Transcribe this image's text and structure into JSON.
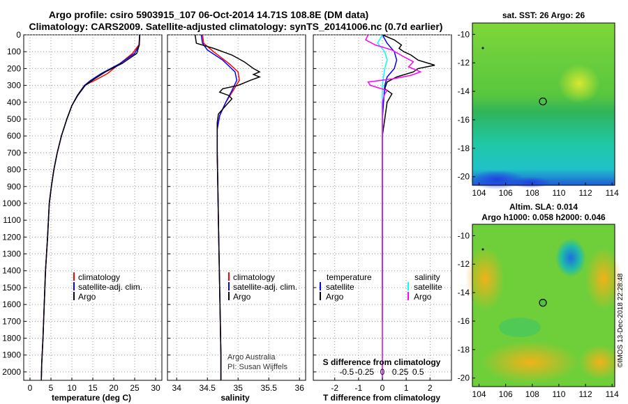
{
  "title": {
    "line1": "Argo profile: csiro 5903915_107 06-Oct-2014 14.71S 108.8E (DM data)",
    "line2": "Climatology: CARS2009. Satellite-adjusted climatology: synTS_20141006.nc (0.7d earlier)"
  },
  "colors": {
    "climatology": "#ff0000",
    "satellite": "#0000ff",
    "argo": "#000000",
    "sat_s": "#00ffff",
    "argo_s": "#ff00ff"
  },
  "chart_data": [
    {
      "type": "line",
      "id": "temperature",
      "xlabel": "temperature (deg C)",
      "xlim": [
        -1.5,
        31.5
      ],
      "ylim": [
        2050,
        0
      ],
      "xticks": [
        0,
        5,
        10,
        15,
        20,
        25,
        30
      ],
      "yticks": [
        0,
        100,
        200,
        300,
        400,
        500,
        600,
        700,
        800,
        900,
        1000,
        1100,
        1200,
        1300,
        1400,
        1500,
        1600,
        1700,
        1800,
        1900,
        2000
      ],
      "legend": [
        "climatology",
        "satellite-adj. clim.",
        "Argo"
      ],
      "series": [
        {
          "name": "climatology",
          "color": "#ff0000",
          "points": [
            [
              26.2,
              0
            ],
            [
              26.0,
              60
            ],
            [
              24.5,
              110
            ],
            [
              21,
              180
            ],
            [
              18.5,
              230
            ],
            [
              15.5,
              270
            ],
            [
              13,
              300
            ],
            [
              11.3,
              360
            ],
            [
              10,
              420
            ],
            [
              8.8,
              500
            ],
            [
              7.5,
              600
            ],
            [
              6.5,
              700
            ],
            [
              5.7,
              800
            ],
            [
              5.1,
              900
            ],
            [
              4.6,
              1000
            ],
            [
              4.2,
              1200
            ],
            [
              3.7,
              1400
            ],
            [
              3.4,
              1600
            ],
            [
              3.1,
              1800
            ],
            [
              2.8,
              1950
            ],
            [
              2.7,
              2050
            ]
          ]
        },
        {
          "name": "satellite-adj. clim.",
          "color": "#0000ff",
          "points": [
            [
              26.2,
              0
            ],
            [
              26.1,
              60
            ],
            [
              25,
              110
            ],
            [
              21.5,
              170
            ],
            [
              17,
              230
            ],
            [
              14.5,
              270
            ],
            [
              13,
              300
            ],
            [
              11.3,
              360
            ],
            [
              10,
              420
            ],
            [
              8.8,
              500
            ],
            [
              7.5,
              600
            ],
            [
              6.5,
              700
            ],
            [
              5.7,
              800
            ],
            [
              5.1,
              900
            ],
            [
              4.6,
              1000
            ],
            [
              4.2,
              1200
            ],
            [
              3.7,
              1400
            ],
            [
              3.4,
              1600
            ],
            [
              3.1,
              1800
            ],
            [
              2.8,
              1950
            ],
            [
              2.7,
              2050
            ]
          ]
        },
        {
          "name": "Argo",
          "color": "#000000",
          "points": [
            [
              26.2,
              0
            ],
            [
              26.1,
              60
            ],
            [
              25.5,
              110
            ],
            [
              22,
              170
            ],
            [
              18,
              220
            ],
            [
              15.5,
              260
            ],
            [
              13.2,
              300
            ],
            [
              11.4,
              360
            ],
            [
              10,
              420
            ],
            [
              8.8,
              500
            ],
            [
              7.5,
              600
            ],
            [
              6.5,
              700
            ],
            [
              5.7,
              800
            ],
            [
              5.1,
              900
            ],
            [
              4.6,
              1000
            ],
            [
              4.2,
              1200
            ],
            [
              3.7,
              1400
            ],
            [
              3.4,
              1600
            ],
            [
              3.1,
              1800
            ],
            [
              2.8,
              1950
            ],
            [
              2.7,
              2050
            ]
          ]
        }
      ]
    },
    {
      "type": "line",
      "id": "salinity",
      "xlabel": "salinity",
      "xlim": [
        33.85,
        36.1
      ],
      "ylim": [
        2050,
        0
      ],
      "xticks": [
        34,
        34.5,
        35,
        35.5,
        36
      ],
      "xticklabels": [
        "34",
        "34.5",
        "35",
        "35.5",
        "36"
      ],
      "legend": [
        "climatology",
        "satellite-adj. clim.",
        "Argo"
      ],
      "credit": [
        "Argo Australia",
        "PI: Susan Wijffels"
      ],
      "series": [
        {
          "name": "climatology",
          "color": "#ff0000",
          "points": [
            [
              34.42,
              0
            ],
            [
              34.44,
              50
            ],
            [
              34.6,
              100
            ],
            [
              34.85,
              170
            ],
            [
              35.0,
              220
            ],
            [
              35.02,
              270
            ],
            [
              34.92,
              330
            ],
            [
              34.8,
              400
            ],
            [
              34.7,
              480
            ],
            [
              34.66,
              560
            ],
            [
              34.66,
              700
            ],
            [
              34.67,
              900
            ],
            [
              34.68,
              1100
            ],
            [
              34.69,
              1300
            ],
            [
              34.7,
              1500
            ],
            [
              34.71,
              1700
            ],
            [
              34.72,
              1900
            ],
            [
              34.72,
              2050
            ]
          ]
        },
        {
          "name": "satellite-adj. clim.",
          "color": "#0000ff",
          "points": [
            [
              34.4,
              0
            ],
            [
              34.42,
              50
            ],
            [
              34.5,
              90
            ],
            [
              34.75,
              150
            ],
            [
              34.95,
              220
            ],
            [
              34.98,
              270
            ],
            [
              34.9,
              330
            ],
            [
              34.8,
              400
            ],
            [
              34.7,
              480
            ],
            [
              34.66,
              560
            ],
            [
              34.66,
              700
            ],
            [
              34.67,
              900
            ],
            [
              34.68,
              1100
            ],
            [
              34.69,
              1300
            ],
            [
              34.7,
              1500
            ],
            [
              34.71,
              1700
            ],
            [
              34.72,
              1900
            ],
            [
              34.72,
              2050
            ]
          ]
        },
        {
          "name": "Argo",
          "color": "#000000",
          "points": [
            [
              34.3,
              0
            ],
            [
              34.32,
              50
            ],
            [
              34.6,
              80
            ],
            [
              34.9,
              120
            ],
            [
              35.1,
              160
            ],
            [
              35.25,
              200
            ],
            [
              35.35,
              220
            ],
            [
              35.25,
              235
            ],
            [
              35.35,
              250
            ],
            [
              35.2,
              270
            ],
            [
              35.0,
              300
            ],
            [
              34.75,
              320
            ],
            [
              34.7,
              340
            ],
            [
              34.85,
              360
            ],
            [
              34.9,
              380
            ],
            [
              34.8,
              420
            ],
            [
              34.68,
              470
            ],
            [
              34.66,
              520
            ],
            [
              34.66,
              700
            ],
            [
              34.67,
              900
            ],
            [
              34.68,
              1100
            ],
            [
              34.69,
              1300
            ],
            [
              34.7,
              1500
            ],
            [
              34.71,
              1700
            ],
            [
              34.72,
              1900
            ],
            [
              34.72,
              2050
            ]
          ]
        }
      ]
    },
    {
      "type": "line",
      "id": "differences",
      "xlabel": "T difference from climatology",
      "xlabel_top": "S difference from climatology",
      "xlim": [
        -2.9,
        2.9
      ],
      "ylim": [
        2050,
        0
      ],
      "xticks": [
        -2,
        -1,
        0,
        1,
        2
      ],
      "s_ticks": [
        "-0.5",
        "-0.25",
        "0",
        "0.25",
        "0.5"
      ],
      "legend_left": {
        "title": "temperature",
        "items": [
          "satellite",
          "Argo"
        ]
      },
      "legend_right": {
        "title": "salinity",
        "items": [
          "satellite",
          "Argo"
        ]
      },
      "series": [
        {
          "name": "T satellite",
          "color": "#0000ff",
          "points": [
            [
              0,
              0
            ],
            [
              0.2,
              50
            ],
            [
              0.5,
              100
            ],
            [
              0.6,
              150
            ],
            [
              0.5,
              200
            ],
            [
              0.2,
              250
            ],
            [
              0.1,
              300
            ],
            [
              0.05,
              400
            ],
            [
              0,
              500
            ],
            [
              0,
              800
            ],
            [
              0,
              1500
            ]
          ]
        },
        {
          "name": "T Argo",
          "color": "#000000",
          "points": [
            [
              0,
              0
            ],
            [
              0.5,
              30
            ],
            [
              0.8,
              60
            ],
            [
              0.7,
              80
            ],
            [
              0.9,
              100
            ],
            [
              1.2,
              120
            ],
            [
              1.5,
              150
            ],
            [
              2.2,
              180
            ],
            [
              1.5,
              200
            ],
            [
              1.3,
              220
            ],
            [
              0.6,
              250
            ],
            [
              0.2,
              280
            ],
            [
              0.1,
              320
            ],
            [
              0.4,
              350
            ],
            [
              0.2,
              400
            ],
            [
              0.1,
              500
            ],
            [
              0,
              600
            ],
            [
              0,
              700
            ],
            [
              0,
              800
            ],
            [
              0,
              900
            ],
            [
              0,
              1000
            ],
            [
              0,
              1100
            ],
            [
              0,
              1200
            ],
            [
              0,
              1300
            ],
            [
              0,
              1400
            ],
            [
              0,
              1500
            ],
            [
              0,
              1600
            ],
            [
              0,
              1700
            ]
          ]
        },
        {
          "name": "S satellite",
          "color": "#00ffff",
          "points": [
            [
              0,
              0
            ],
            [
              -0.2,
              50
            ],
            [
              0.1,
              100
            ],
            [
              0.2,
              150
            ],
            [
              0.1,
              200
            ],
            [
              0,
              300
            ],
            [
              0,
              400
            ],
            [
              0,
              600
            ],
            [
              0,
              800
            ],
            [
              0,
              1100
            ],
            [
              0,
              1400
            ],
            [
              0,
              1700
            ],
            [
              0,
              2050
            ]
          ]
        },
        {
          "name": "S Argo",
          "color": "#ff00ff",
          "points": [
            [
              -0.6,
              0
            ],
            [
              -0.7,
              30
            ],
            [
              -0.3,
              60
            ],
            [
              0.4,
              90
            ],
            [
              0.9,
              130
            ],
            [
              1.3,
              160
            ],
            [
              1.1,
              190
            ],
            [
              1.6,
              220
            ],
            [
              1.2,
              240
            ],
            [
              0.5,
              260
            ],
            [
              -0.6,
              280
            ],
            [
              -0.5,
              300
            ],
            [
              0.2,
              330
            ],
            [
              0.1,
              350
            ],
            [
              0,
              400
            ],
            [
              0,
              600
            ],
            [
              0,
              800
            ],
            [
              0,
              1200
            ],
            [
              0,
              1600
            ],
            [
              0,
              2050
            ]
          ]
        }
      ]
    }
  ],
  "yticklabels": [
    "0",
    "100",
    "200",
    "300",
    "400",
    "500",
    "600",
    "700",
    "800",
    "900",
    "1000",
    "1100",
    "1200",
    "1300",
    "1400",
    "1500",
    "1600",
    "1700",
    "1800",
    "1900",
    "2000"
  ],
  "map_sst": {
    "title": "sat. SST: 26 Argo: 26",
    "xlim": [
      103.5,
      114.2
    ],
    "ylim": [
      -20.6,
      -9.2
    ],
    "xticks": [
      "104",
      "106",
      "108",
      "110",
      "112",
      "114"
    ],
    "yticks": [
      "-10",
      "-12",
      "-14",
      "-16",
      "-18",
      "-20"
    ],
    "argo_lon": 108.8,
    "argo_lat": -14.71
  },
  "map_sla": {
    "title": "Altim. SLA: 0.014",
    "subtitle": "Argo h1000: 0.058 h2000: 0.046",
    "xlim": [
      103.5,
      114.2
    ],
    "ylim": [
      -20.6,
      -9.2
    ],
    "xticks": [
      "104",
      "106",
      "108",
      "110",
      "112",
      "114"
    ],
    "yticks": [
      "-10",
      "-12",
      "-14",
      "-16",
      "-18",
      "-20"
    ],
    "argo_lon": 108.8,
    "argo_lat": -14.71
  },
  "credit_side": "©IMOS 13-Dec-2018 22:28:48"
}
